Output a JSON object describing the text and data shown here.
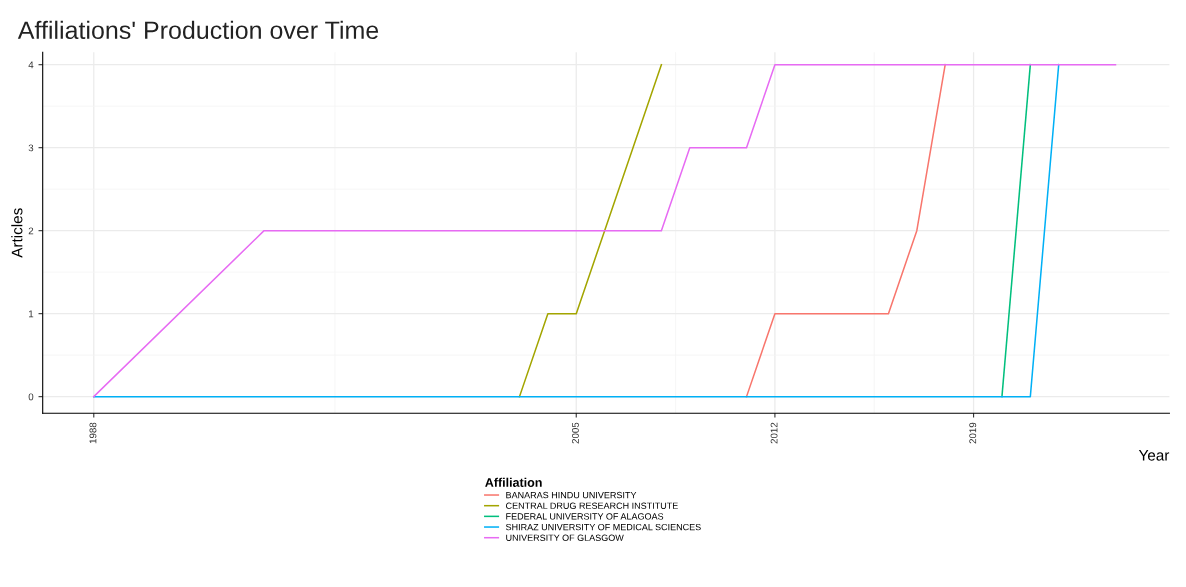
{
  "chart_data": {
    "type": "line",
    "title": "Affiliations' Production over Time",
    "xlabel": "Year",
    "ylabel": "Articles",
    "legend_title": "Affiliation",
    "x": [
      1988,
      1989,
      1990,
      1991,
      1992,
      1993,
      1994,
      1995,
      1996,
      1997,
      1998,
      1999,
      2000,
      2001,
      2002,
      2003,
      2004,
      2005,
      2006,
      2007,
      2008,
      2009,
      2010,
      2011,
      2012,
      2013,
      2014,
      2015,
      2016,
      2017,
      2018,
      2019,
      2020,
      2021,
      2022
    ],
    "series": [
      {
        "name": "BANARAS HINDU UNIVERSITY",
        "color": "#f8766d",
        "values": [
          null,
          null,
          null,
          null,
          null,
          null,
          null,
          null,
          null,
          null,
          null,
          null,
          null,
          null,
          null,
          null,
          null,
          null,
          null,
          null,
          null,
          null,
          null,
          0,
          1,
          1,
          1,
          1,
          1,
          2,
          4,
          null,
          null,
          null,
          null
        ]
      },
      {
        "name": "CENTRAL DRUG RESEARCH INSTITUTE",
        "color": "#a3a500",
        "values": [
          null,
          null,
          null,
          null,
          null,
          null,
          null,
          null,
          null,
          null,
          null,
          null,
          null,
          null,
          null,
          0,
          1,
          1,
          2,
          3,
          4,
          null,
          null,
          null,
          null,
          null,
          null,
          null,
          null,
          null,
          null,
          null,
          null,
          null,
          null
        ]
      },
      {
        "name": "FEDERAL UNIVERSITY OF ALAGOAS",
        "color": "#00bf7d",
        "values": [
          null,
          null,
          null,
          null,
          null,
          null,
          null,
          null,
          null,
          null,
          null,
          null,
          null,
          null,
          null,
          null,
          null,
          null,
          null,
          null,
          null,
          null,
          null,
          null,
          null,
          null,
          null,
          null,
          null,
          null,
          null,
          null,
          0,
          4,
          null
        ]
      },
      {
        "name": "SHIRAZ UNIVERSITY OF MEDICAL SCIENCES",
        "color": "#00b0f6",
        "values": [
          0,
          0,
          0,
          0,
          0,
          0,
          0,
          0,
          0,
          0,
          0,
          0,
          0,
          0,
          0,
          0,
          0,
          0,
          0,
          0,
          0,
          0,
          0,
          0,
          0,
          0,
          0,
          0,
          0,
          0,
          0,
          0,
          0,
          0,
          4
        ]
      },
      {
        "name": "UNIVERSITY OF GLASGOW",
        "color": "#e76bf3",
        "x": [
          1988,
          1994,
          2008,
          2009,
          2011,
          2012,
          2024
        ],
        "values": [
          0,
          2,
          2,
          3,
          3,
          4,
          4
        ]
      }
    ],
    "xlim": [
      1986.2,
      2025.9
    ],
    "xticks": [
      1988,
      2005,
      2012,
      2019
    ],
    "ylim": [
      -0.2,
      4.15
    ],
    "yticks": [
      0,
      1,
      2,
      3,
      4
    ],
    "grid": true,
    "legend": "bottom",
    "line_style": "solid",
    "marker": "none"
  }
}
